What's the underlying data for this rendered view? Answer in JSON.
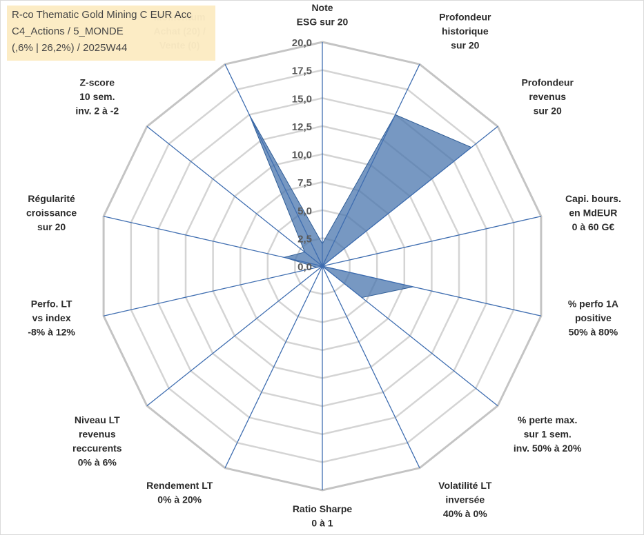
{
  "title_box": {
    "line1": "R-co Thematic Gold Mining C EUR Acc",
    "line2": "C4_Actions / 5_MONDE",
    "line3": "(,6% | 26,2%) / 2025W44"
  },
  "chart_data": {
    "type": "radar",
    "title": "R-co Thematic Gold Mining C EUR Acc",
    "range": [
      0,
      20
    ],
    "ticks": [
      "0,0",
      "2,5",
      "5,0",
      "7,5",
      "10,0",
      "12,5",
      "15,0",
      "17,5",
      "20,0"
    ],
    "axes": [
      [
        "Note",
        "ESG sur 20"
      ],
      [
        "Profondeur",
        "historique",
        "sur 20"
      ],
      [
        "Profondeur",
        "revenus",
        "sur 20"
      ],
      [
        "Capi. bours.",
        "en MdEUR",
        "0 à 60 G€"
      ],
      [
        "% perfo 1A",
        "positive",
        "50% à 80%"
      ],
      [
        "% perte max.",
        "sur 1 sem.",
        "inv. 50% à 20%"
      ],
      [
        "Volatilité LT",
        "inversée",
        "40% à 0%"
      ],
      [
        "Ratio Sharpe",
        "0 à 1"
      ],
      [
        "Rendement LT",
        "0% à 20%"
      ],
      [
        "Niveau LT",
        "revenus",
        "reccurents",
        "0% à 6%"
      ],
      [
        "Perfo. LT",
        "vs index",
        "-8% à 12%"
      ],
      [
        "Régularité",
        "croissance",
        "sur 20"
      ],
      [
        "Z-score",
        "10 sem.",
        "inv. 2 à -2"
      ],
      [
        "Momentum",
        "Achat (20) /",
        "Vente (0)"
      ]
    ],
    "values": [
      2,
      15,
      17,
      0,
      8.3,
      4.5,
      0,
      0,
      0,
      0,
      0.5,
      3.5,
      2,
      15
    ],
    "series_color": "#4a76ae",
    "grid": true
  }
}
